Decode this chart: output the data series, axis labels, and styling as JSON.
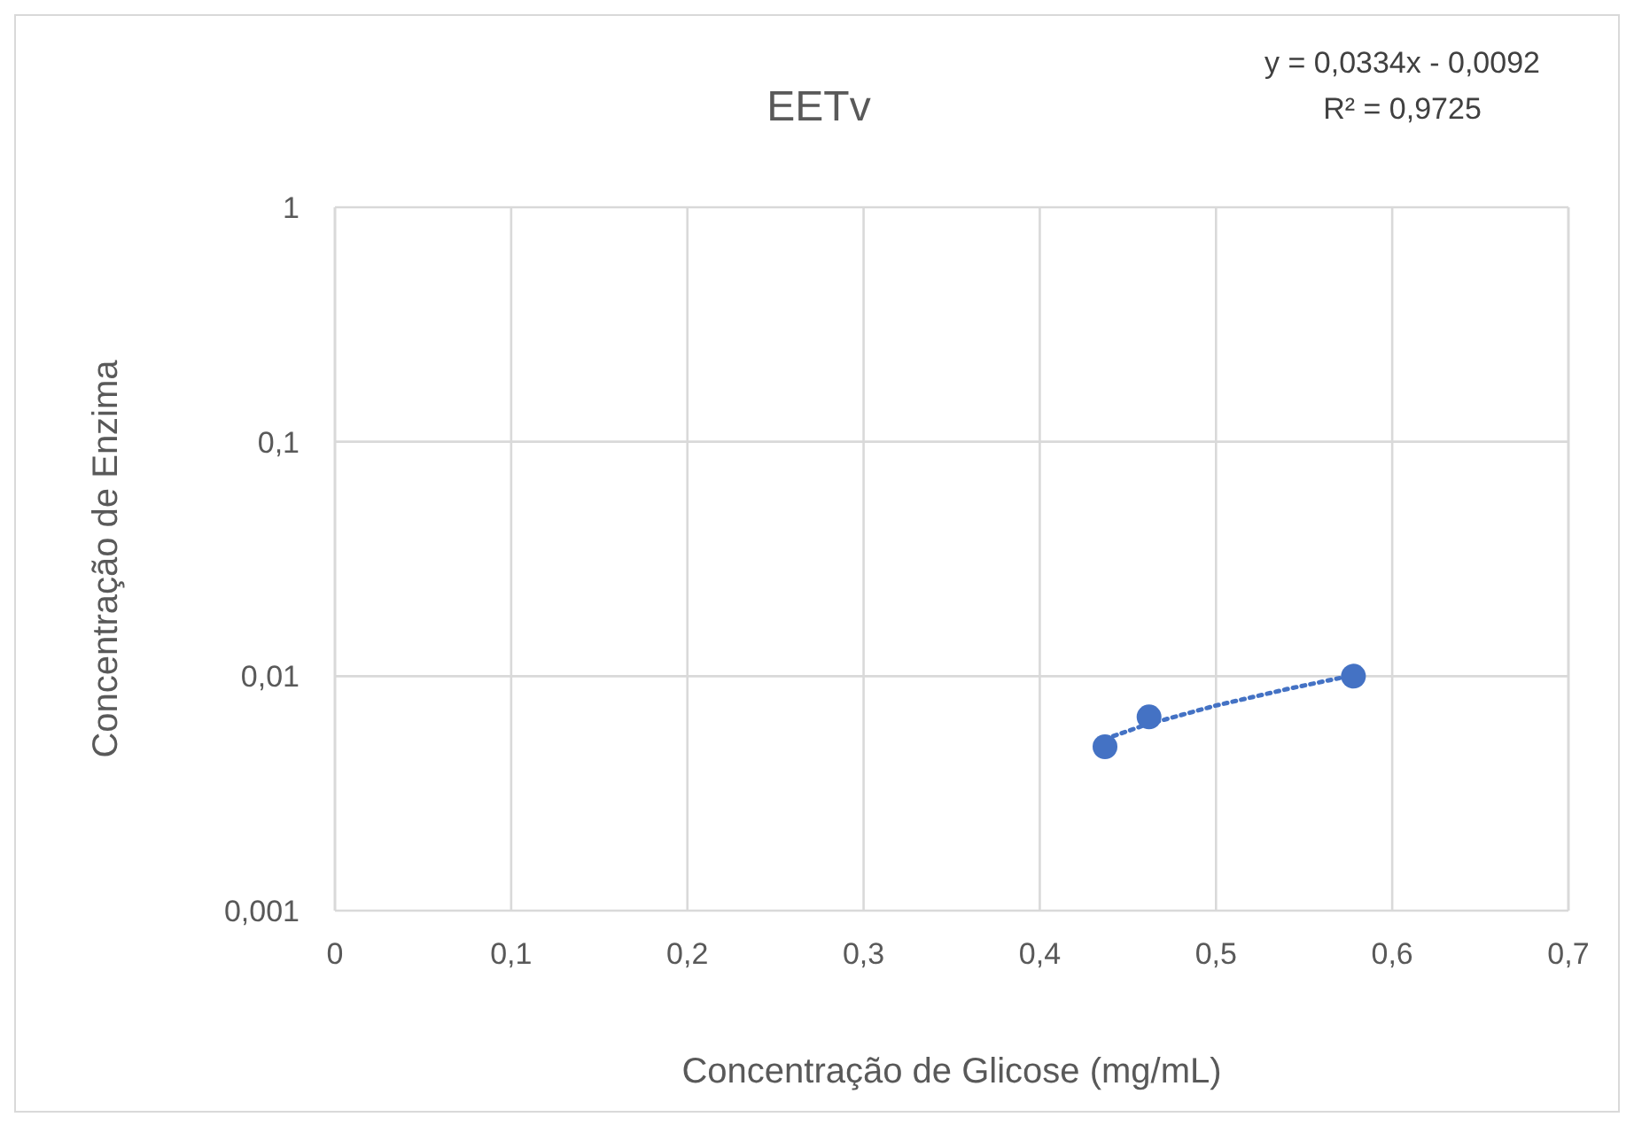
{
  "chart_data": {
    "type": "scatter",
    "title": "EETv",
    "xlabel": "Concentração de Glicose (mg/mL)",
    "ylabel": "Concentração de Enzima",
    "annotations": [
      "y = 0,0334x - 0,0092",
      "R² = 0,9725"
    ],
    "series": [
      {
        "color": "#4472c4",
        "marker": "circle",
        "x": [
          0.437,
          0.462,
          0.578
        ],
        "values": [
          0.005,
          0.0067,
          0.01
        ]
      },
      {
        "type": "line",
        "color": "#4472c4",
        "line_style": "dotted",
        "marker": "none",
        "x": [
          0.437,
          0.46,
          0.5,
          0.54,
          0.578
        ],
        "values": [
          0.0054,
          0.0062,
          0.0075,
          0.0088,
          0.0101
        ]
      }
    ],
    "log": "y",
    "grid": true,
    "xlim": [
      0,
      0.7
    ],
    "xticks": [
      0,
      {
        "value": 0.1,
        "label": "0,1"
      },
      {
        "value": 0.2,
        "label": "0,2"
      },
      {
        "value": 0.3,
        "label": "0,3"
      },
      {
        "value": 0.4,
        "label": "0,4"
      },
      {
        "value": 0.5,
        "label": "0,5"
      },
      {
        "value": 0.6,
        "label": "0,6"
      },
      {
        "value": 0.7,
        "label": "0,7"
      }
    ],
    "ylim": [
      0.001,
      1
    ],
    "yticks": [
      {
        "value": 0.001,
        "label": "0,001"
      },
      {
        "value": 0.01,
        "label": "0,01"
      },
      {
        "value": 0.1,
        "label": "0,1"
      },
      1
    ]
  }
}
